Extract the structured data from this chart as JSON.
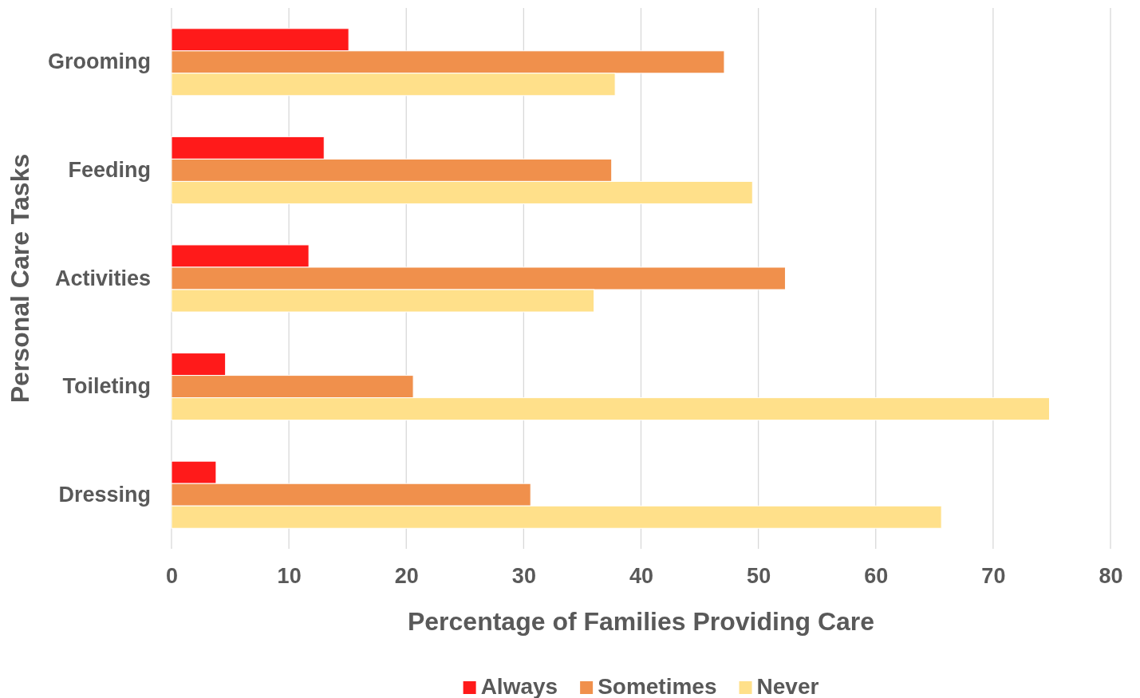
{
  "chart_data": {
    "type": "bar",
    "orientation": "horizontal",
    "xlabel": "Percentage of Families Providing Care",
    "ylabel": "Personal Care Tasks",
    "categories": [
      "Grooming",
      "Feeding",
      "Activities",
      "Toileting",
      "Dressing"
    ],
    "series": [
      {
        "name": "Always",
        "color": "#ff1a1a",
        "values": [
          15.1,
          13.0,
          11.7,
          4.6,
          3.8
        ]
      },
      {
        "name": "Sometimes",
        "color": "#f0904c",
        "values": [
          47.1,
          37.5,
          52.3,
          20.6,
          30.6
        ]
      },
      {
        "name": "Never",
        "color": "#ffe08a",
        "values": [
          37.8,
          49.5,
          36.0,
          74.8,
          65.6
        ]
      }
    ],
    "xlim": [
      0,
      80
    ],
    "xticks": [
      0,
      10,
      20,
      30,
      40,
      50,
      60,
      70,
      80
    ],
    "grid": "x",
    "legend": "bottom"
  }
}
